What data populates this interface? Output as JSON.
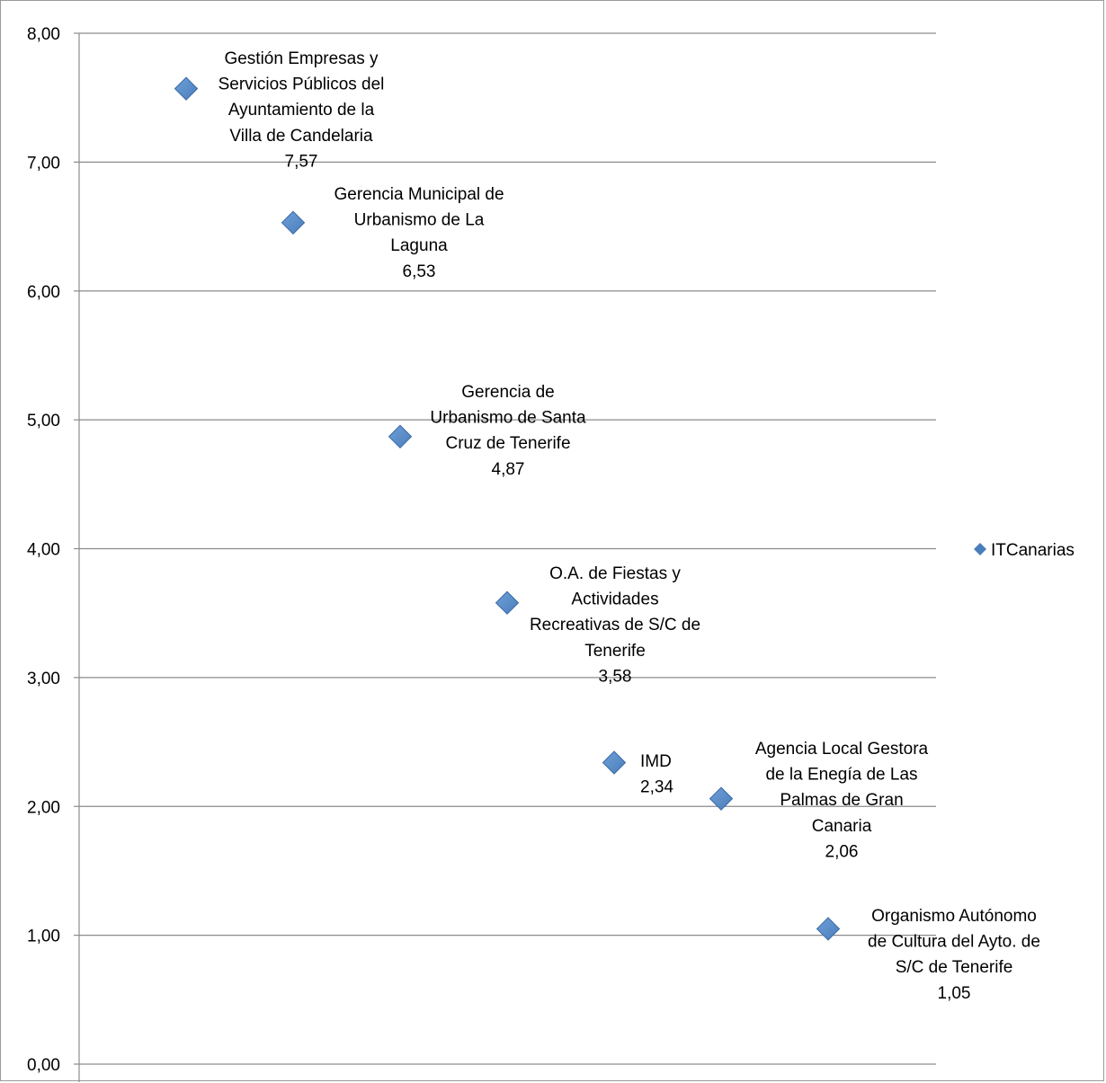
{
  "chart_data": {
    "type": "scatter",
    "title": "",
    "xlabel": "",
    "ylabel": "",
    "ylim": [
      0,
      8
    ],
    "yticks": [
      "0,00",
      "1,00",
      "2,00",
      "3,00",
      "4,00",
      "5,00",
      "6,00",
      "7,00",
      "8,00"
    ],
    "grid": true,
    "legend_position": "right",
    "series": [
      {
        "name": "ITCanarias",
        "color": "#4a7ebb",
        "marker": "diamond",
        "points": [
          {
            "x": 1,
            "y": 7.57,
            "label_lines": [
              "Gestión Empresas y",
              "Servicios Públicos del",
              "Ayuntamiento de la",
              "Villa de Candelaria",
              "7,57"
            ]
          },
          {
            "x": 2,
            "y": 6.53,
            "label_lines": [
              "Gerencia Municipal de",
              "Urbanismo de La",
              "Laguna",
              "6,53"
            ]
          },
          {
            "x": 3,
            "y": 4.87,
            "label_lines": [
              "Gerencia de",
              "Urbanismo de Santa",
              "Cruz de Tenerife",
              "4,87"
            ]
          },
          {
            "x": 4,
            "y": 3.58,
            "label_lines": [
              "O.A. de Fiestas y",
              "Actividades",
              "Recreativas de S/C de",
              "Tenerife",
              "3,58"
            ]
          },
          {
            "x": 5,
            "y": 2.34,
            "label_lines": [
              "IMD",
              "2,34"
            ]
          },
          {
            "x": 6,
            "y": 2.06,
            "label_lines": [
              "Agencia Local Gestora",
              "de la Enegía de Las",
              "Palmas de Gran",
              "Canaria",
              "2,06"
            ]
          },
          {
            "x": 7,
            "y": 1.05,
            "label_lines": [
              "Organismo Autónomo",
              "de Cultura del Ayto. de",
              "S/C de Tenerife",
              "1,05"
            ]
          }
        ]
      }
    ]
  }
}
